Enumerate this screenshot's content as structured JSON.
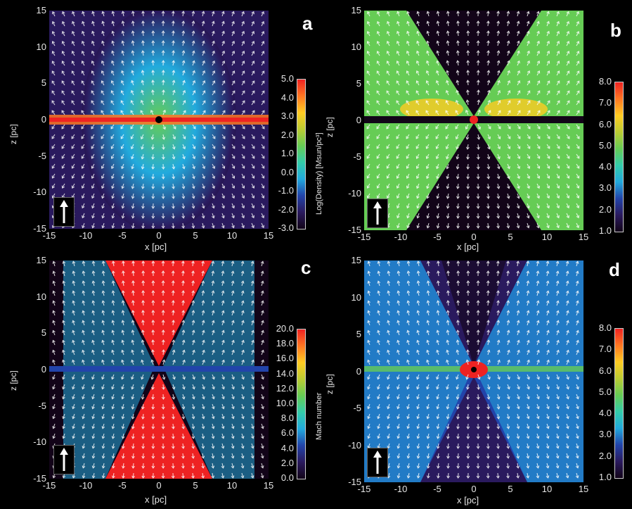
{
  "panels": [
    {
      "letter": "a",
      "yaxis_label": "z [pc]",
      "xaxis_label": "x [pc]",
      "x_ticks": [
        "-15",
        "-10",
        "-5",
        "0",
        "5",
        "10",
        "15"
      ],
      "y_ticks": [
        "15",
        "10",
        "5",
        "0",
        "-5",
        "-10",
        "-15"
      ],
      "colorbar": {
        "label": "Log(Density) [Msun/pc³]",
        "ticks": [
          "5.0",
          "4.0",
          "3.0",
          "2.0",
          "1.0",
          "0.0",
          "-1.0",
          "-2.0",
          "-3.0"
        ],
        "range": [
          -3.0,
          5.0
        ]
      }
    },
    {
      "letter": "b",
      "yaxis_label": "z [pc]",
      "xaxis_label": "x [pc]",
      "x_ticks": [
        "-15",
        "-10",
        "-5",
        "0",
        "5",
        "10",
        "15"
      ],
      "y_ticks": [
        "15",
        "10",
        "5",
        "0",
        "-5",
        "-10",
        "-15"
      ],
      "colorbar": {
        "label": "",
        "ticks": [
          "8.0",
          "7.0",
          "6.0",
          "5.0",
          "4.0",
          "3.0",
          "2.0",
          "1.0"
        ],
        "range": [
          1.0,
          8.0
        ]
      }
    },
    {
      "letter": "c",
      "yaxis_label": "z [pc]",
      "xaxis_label": "x [pc]",
      "x_ticks": [
        "-15",
        "-10",
        "-5",
        "0",
        "5",
        "10",
        "15"
      ],
      "y_ticks": [
        "15",
        "10",
        "5",
        "0",
        "-5",
        "-10",
        "-15"
      ],
      "colorbar": {
        "label": "Mach number",
        "ticks": [
          "20.0",
          "18.0",
          "16.0",
          "14.0",
          "12.0",
          "10.0",
          "8.0",
          "6.0",
          "4.0",
          "2.0",
          "0.0"
        ],
        "range": [
          0.0,
          20.0
        ]
      }
    },
    {
      "letter": "d",
      "yaxis_label": "z [pc]",
      "xaxis_label": "x [pc]",
      "x_ticks": [
        "-15",
        "-10",
        "-5",
        "0",
        "5",
        "10",
        "15"
      ],
      "y_ticks": [
        "15",
        "10",
        "5",
        "0",
        "-5",
        "-10",
        "-15"
      ],
      "colorbar": {
        "label": "",
        "ticks": [
          "8.0",
          "7.0",
          "6.0",
          "5.0",
          "4.0",
          "3.0",
          "2.0",
          "1.0"
        ],
        "range": [
          1.0,
          8.0
        ]
      }
    }
  ],
  "colors": {
    "background": "#000000",
    "colormap": [
      "#120418",
      "#2a1a5e",
      "#2244aa",
      "#22aadd",
      "#33ccaa",
      "#66cc55",
      "#bbcc33",
      "#ffcc22",
      "#ff7722",
      "#ee2222"
    ]
  }
}
